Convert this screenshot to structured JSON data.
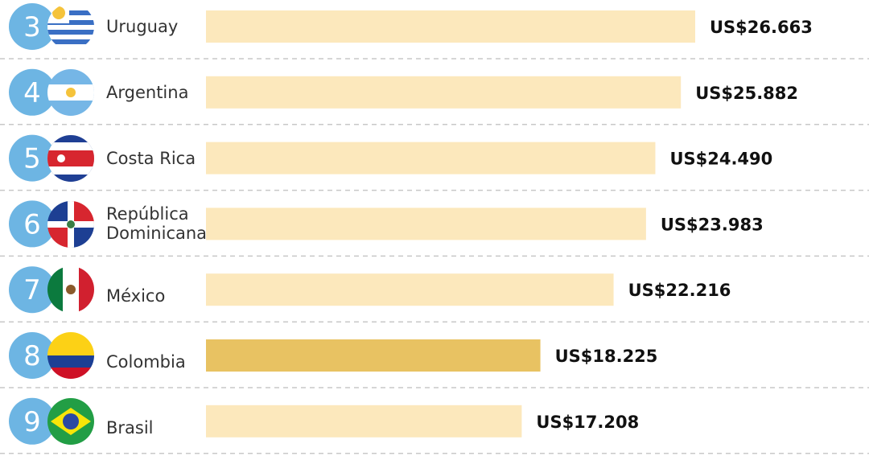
{
  "chart_data": {
    "type": "bar",
    "ranks": [
      3,
      4,
      5,
      6,
      7,
      8,
      9
    ],
    "categories": [
      "Uruguay",
      "Argentina",
      "Costa Rica",
      "República Dominicana",
      "México",
      "Colombia",
      "Brasil"
    ],
    "values": [
      26663,
      25882,
      24490,
      23983,
      22216,
      18225,
      17208
    ],
    "value_labels": [
      "US$26.663",
      "US$25.882",
      "US$24.490",
      "US$23.983",
      "US$22.216",
      "US$18.225",
      "US$17.208"
    ],
    "colors": [
      "#fce8bc",
      "#fce8bc",
      "#fce8bc",
      "#fce8bc",
      "#fce8bc",
      "#e8c262",
      "#fce8bc"
    ]
  }
}
